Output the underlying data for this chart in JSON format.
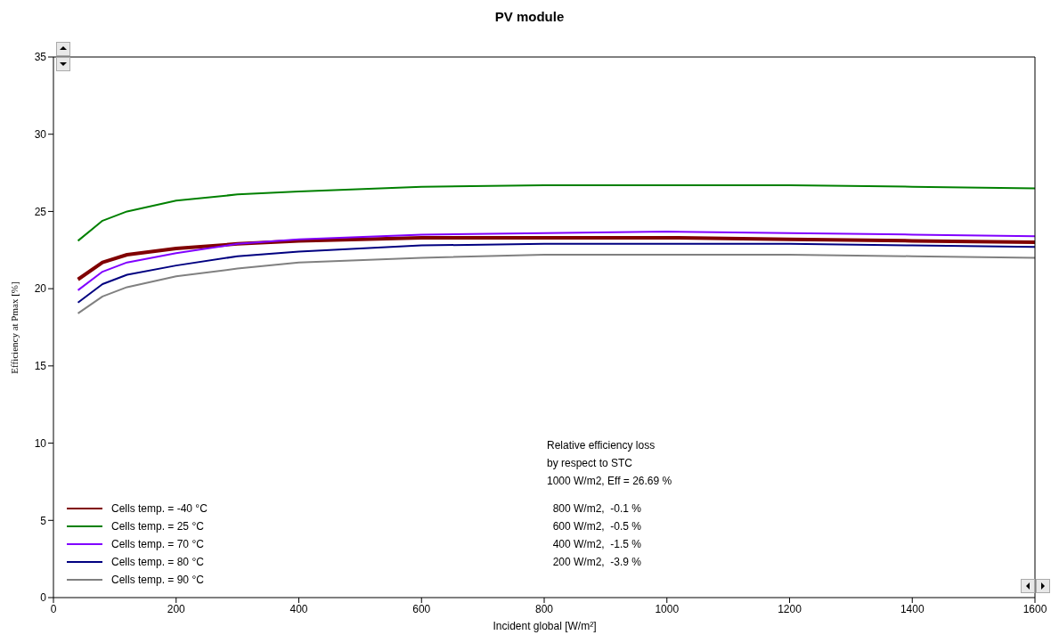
{
  "chart_data": {
    "type": "line",
    "title": "PV module",
    "xlabel": "Incident global [W/m²]",
    "ylabel": "Efficiency at Pmax [%]",
    "x": [
      40,
      80,
      120,
      200,
      300,
      400,
      600,
      800,
      1000,
      1200,
      1400,
      1600
    ],
    "series": [
      {
        "name": "Cells temp. = -40 °C",
        "color": "#800000",
        "values": [
          20.6,
          21.7,
          22.2,
          22.6,
          22.9,
          23.1,
          23.3,
          23.3,
          23.3,
          23.2,
          23.1,
          23.0
        ]
      },
      {
        "name": "Cells temp. = 25 °C",
        "color": "#008000",
        "values": [
          23.1,
          24.4,
          25.0,
          25.7,
          26.1,
          26.3,
          26.6,
          26.7,
          26.7,
          26.7,
          26.6,
          26.5
        ]
      },
      {
        "name": "Cells temp. = 70 °C",
        "color": "#8000ff",
        "values": [
          19.9,
          21.1,
          21.7,
          22.3,
          22.9,
          23.2,
          23.5,
          23.6,
          23.7,
          23.6,
          23.5,
          23.4
        ]
      },
      {
        "name": "Cells temp. = 80 °C",
        "color": "#000080",
        "values": [
          19.1,
          20.3,
          20.9,
          21.5,
          22.1,
          22.4,
          22.8,
          22.9,
          22.9,
          22.9,
          22.8,
          22.7
        ]
      },
      {
        "name": "Cells temp. = 90 °C",
        "color": "#808080",
        "values": [
          18.4,
          19.5,
          20.1,
          20.8,
          21.3,
          21.7,
          22.0,
          22.2,
          22.2,
          22.2,
          22.1,
          22.0
        ]
      }
    ],
    "xlim": [
      0,
      1600
    ],
    "xticks": [
      0,
      200,
      400,
      600,
      800,
      1000,
      1200,
      1400,
      1600
    ],
    "ylim": [
      0,
      35
    ],
    "yticks": [
      0,
      5,
      10,
      15,
      20,
      25,
      30,
      35
    ],
    "grid": false,
    "legend": "bottom left",
    "marker": "none",
    "line_style": "solid",
    "annotations": [
      "Relative efficiency loss",
      "by respect to STC",
      "1000 W/m2, Eff = 26.69 %",
      "  800 W/m2,  -0.1 %",
      "  600 W/m2,  -0.5 %",
      "  400 W/m2,  -1.5 %",
      "  200 W/m2,  -3.9 %"
    ]
  }
}
